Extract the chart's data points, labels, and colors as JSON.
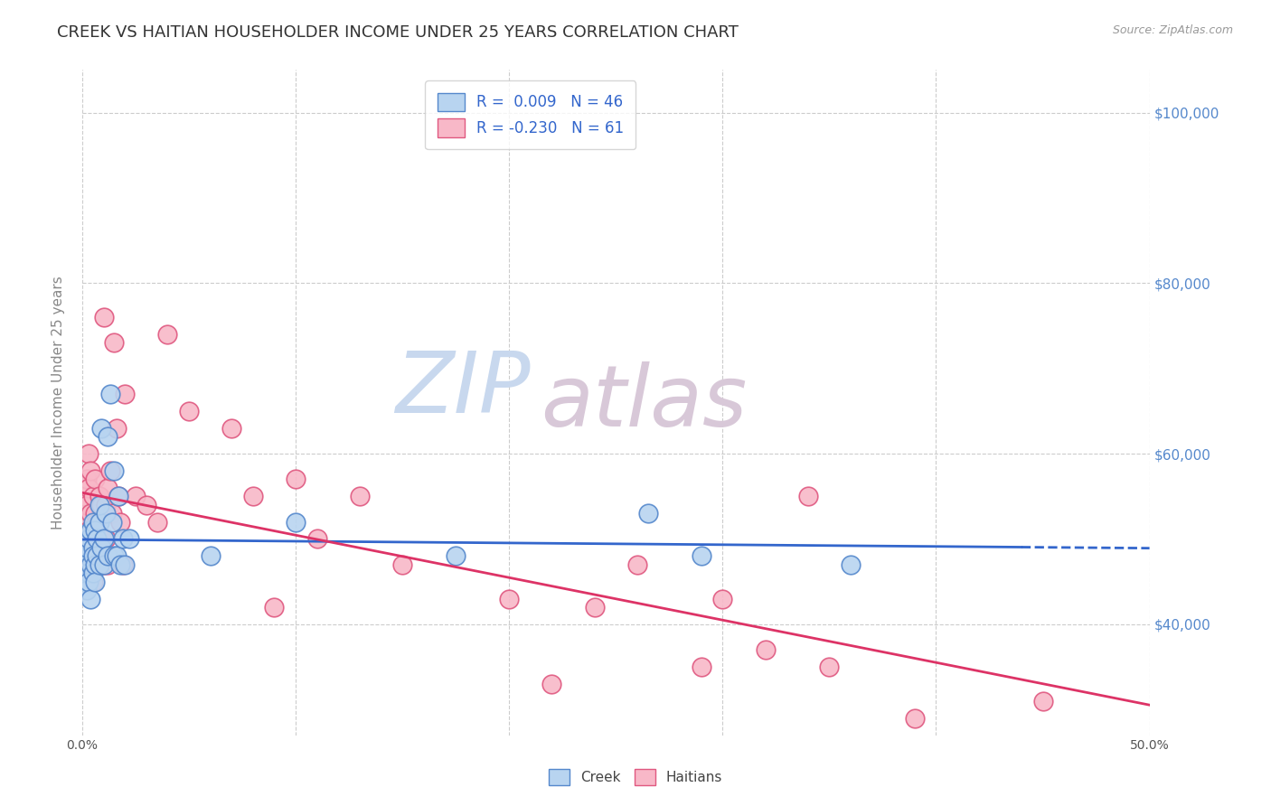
{
  "title": "CREEK VS HAITIAN HOUSEHOLDER INCOME UNDER 25 YEARS CORRELATION CHART",
  "source": "Source: ZipAtlas.com",
  "ylabel": "Householder Income Under 25 years",
  "xlim": [
    0.0,
    0.5
  ],
  "ylim": [
    27000,
    105000
  ],
  "xticks": [
    0.0,
    0.1,
    0.2,
    0.3,
    0.4,
    0.5
  ],
  "ytick_positions": [
    40000,
    60000,
    80000,
    100000
  ],
  "ytick_labels": [
    "$40,000",
    "$60,000",
    "$80,000",
    "$100,000"
  ],
  "creek_fill_color": "#b8d4f0",
  "creek_edge_color": "#5588cc",
  "haitian_fill_color": "#f8b8c8",
  "haitian_edge_color": "#e05880",
  "creek_line_color": "#3366cc",
  "haitian_line_color": "#dd3366",
  "legend_label_color": "#3366cc",
  "legend_creek_r": "0.009",
  "legend_creek_n": "46",
  "legend_haitian_r": "-0.230",
  "legend_haitian_n": "61",
  "background_color": "#ffffff",
  "grid_color": "#cccccc",
  "watermark_zip_color": "#c8d8ee",
  "watermark_atlas_color": "#d8c8d8",
  "title_color": "#333333",
  "axis_label_color": "#888888",
  "right_tick_color": "#5588cc",
  "title_fontsize": 13,
  "axis_fontsize": 11,
  "tick_fontsize": 10,
  "creek_scatter_x": [
    0.001,
    0.001,
    0.002,
    0.002,
    0.002,
    0.003,
    0.003,
    0.003,
    0.004,
    0.004,
    0.004,
    0.005,
    0.005,
    0.005,
    0.005,
    0.006,
    0.006,
    0.006,
    0.007,
    0.007,
    0.008,
    0.008,
    0.008,
    0.009,
    0.009,
    0.01,
    0.01,
    0.011,
    0.012,
    0.012,
    0.013,
    0.014,
    0.015,
    0.015,
    0.016,
    0.017,
    0.018,
    0.019,
    0.02,
    0.022,
    0.06,
    0.1,
    0.175,
    0.265,
    0.29,
    0.36
  ],
  "creek_scatter_y": [
    47000,
    45000,
    48000,
    44000,
    49000,
    46000,
    50000,
    45000,
    47000,
    51000,
    43000,
    49000,
    46000,
    48000,
    52000,
    47000,
    51000,
    45000,
    50000,
    48000,
    52000,
    47000,
    54000,
    49000,
    63000,
    50000,
    47000,
    53000,
    62000,
    48000,
    67000,
    52000,
    48000,
    58000,
    48000,
    55000,
    47000,
    50000,
    47000,
    50000,
    48000,
    52000,
    48000,
    53000,
    48000,
    47000
  ],
  "haitian_scatter_x": [
    0.001,
    0.001,
    0.002,
    0.002,
    0.002,
    0.003,
    0.003,
    0.003,
    0.003,
    0.004,
    0.004,
    0.004,
    0.005,
    0.005,
    0.005,
    0.006,
    0.006,
    0.006,
    0.007,
    0.007,
    0.008,
    0.008,
    0.009,
    0.009,
    0.01,
    0.01,
    0.011,
    0.011,
    0.012,
    0.012,
    0.013,
    0.014,
    0.015,
    0.016,
    0.017,
    0.018,
    0.019,
    0.02,
    0.025,
    0.03,
    0.035,
    0.04,
    0.05,
    0.07,
    0.08,
    0.09,
    0.1,
    0.11,
    0.13,
    0.15,
    0.2,
    0.22,
    0.24,
    0.26,
    0.29,
    0.3,
    0.32,
    0.34,
    0.35,
    0.39,
    0.45
  ],
  "haitian_scatter_y": [
    55000,
    52000,
    57000,
    54000,
    49000,
    56000,
    60000,
    51000,
    47000,
    58000,
    53000,
    50000,
    55000,
    48000,
    45000,
    57000,
    53000,
    50000,
    52000,
    48000,
    55000,
    47000,
    54000,
    50000,
    76000,
    47000,
    54000,
    50000,
    56000,
    47000,
    58000,
    53000,
    73000,
    63000,
    55000,
    52000,
    47000,
    67000,
    55000,
    54000,
    52000,
    74000,
    65000,
    63000,
    55000,
    42000,
    57000,
    50000,
    55000,
    47000,
    43000,
    33000,
    42000,
    47000,
    35000,
    43000,
    37000,
    55000,
    35000,
    29000,
    31000
  ]
}
